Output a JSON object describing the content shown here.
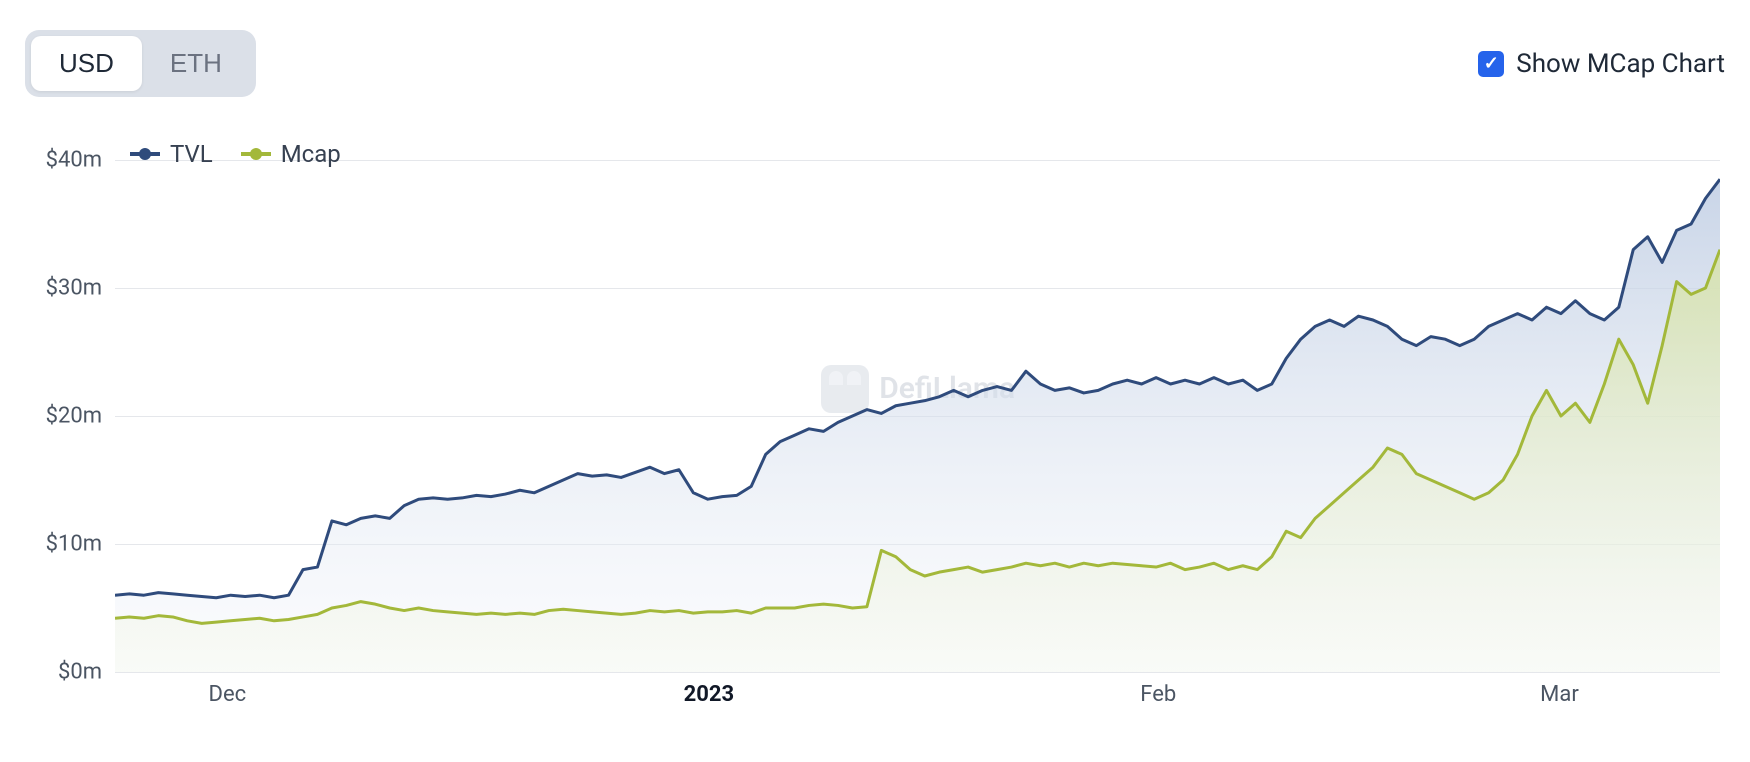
{
  "controls": {
    "toggles": [
      {
        "label": "USD",
        "active": true
      },
      {
        "label": "ETH",
        "active": false
      }
    ],
    "checkbox_label": "Show MCap Chart",
    "checkbox_checked": true
  },
  "legend": {
    "items": [
      {
        "label": "TVL",
        "color": "#2f4b7c"
      },
      {
        "label": "Mcap",
        "color": "#a3b83a"
      }
    ]
  },
  "watermark": {
    "text": "DefiLlama"
  },
  "chart": {
    "type": "area",
    "background_color": "#ffffff",
    "grid_color": "#e5e7eb",
    "label_fontsize": 22,
    "y": {
      "min": 0,
      "max": 40,
      "unit_prefix": "$",
      "unit_suffix": "m",
      "ticks": [
        0,
        10,
        20,
        30,
        40
      ]
    },
    "x": {
      "ticks": [
        {
          "pos": 0.07,
          "label": "Dec",
          "bold": false
        },
        {
          "pos": 0.37,
          "label": "2023",
          "bold": true
        },
        {
          "pos": 0.65,
          "label": "Feb",
          "bold": false
        },
        {
          "pos": 0.9,
          "label": "Mar",
          "bold": false
        }
      ]
    },
    "series": [
      {
        "name": "TVL",
        "stroke": "#2f4b7c",
        "fill_top": "#bfcde3",
        "fill_bottom": "#eef2f8",
        "fill_opacity": 0.85,
        "line_width": 3,
        "values": [
          6.0,
          6.1,
          6.0,
          6.2,
          6.1,
          6.0,
          5.9,
          5.8,
          6.0,
          5.9,
          6.0,
          5.8,
          6.0,
          8.0,
          8.2,
          11.8,
          11.5,
          12.0,
          12.2,
          12.0,
          13.0,
          13.5,
          13.6,
          13.5,
          13.6,
          13.8,
          13.7,
          13.9,
          14.2,
          14.0,
          14.5,
          15.0,
          15.5,
          15.3,
          15.4,
          15.2,
          15.6,
          16.0,
          15.5,
          15.8,
          14.0,
          13.5,
          13.7,
          13.8,
          14.5,
          17.0,
          18.0,
          18.5,
          19.0,
          18.8,
          19.5,
          20.0,
          20.5,
          20.2,
          20.8,
          21.0,
          21.2,
          21.5,
          22.0,
          21.5,
          22.0,
          22.3,
          22.0,
          23.5,
          22.5,
          22.0,
          22.2,
          21.8,
          22.0,
          22.5,
          22.8,
          22.5,
          23.0,
          22.5,
          22.8,
          22.5,
          23.0,
          22.5,
          22.8,
          22.0,
          22.5,
          24.5,
          26.0,
          27.0,
          27.5,
          27.0,
          27.8,
          27.5,
          27.0,
          26.0,
          25.5,
          26.2,
          26.0,
          25.5,
          26.0,
          27.0,
          27.5,
          28.0,
          27.5,
          28.5,
          28.0,
          29.0,
          28.0,
          27.5,
          28.5,
          33.0,
          34.0,
          32.0,
          34.5,
          35.0,
          37.0,
          38.5
        ]
      },
      {
        "name": "Mcap",
        "stroke": "#a3b83a",
        "fill_top": "#d6e2a8",
        "fill_bottom": "#f3f7e6",
        "fill_opacity": 0.85,
        "line_width": 3,
        "values": [
          4.2,
          4.3,
          4.2,
          4.4,
          4.3,
          4.0,
          3.8,
          3.9,
          4.0,
          4.1,
          4.2,
          4.0,
          4.1,
          4.3,
          4.5,
          5.0,
          5.2,
          5.5,
          5.3,
          5.0,
          4.8,
          5.0,
          4.8,
          4.7,
          4.6,
          4.5,
          4.6,
          4.5,
          4.6,
          4.5,
          4.8,
          4.9,
          4.8,
          4.7,
          4.6,
          4.5,
          4.6,
          4.8,
          4.7,
          4.8,
          4.6,
          4.7,
          4.7,
          4.8,
          4.6,
          5.0,
          5.0,
          5.0,
          5.2,
          5.3,
          5.2,
          5.0,
          5.1,
          9.5,
          9.0,
          8.0,
          7.5,
          7.8,
          8.0,
          8.2,
          7.8,
          8.0,
          8.2,
          8.5,
          8.3,
          8.5,
          8.2,
          8.5,
          8.3,
          8.5,
          8.4,
          8.3,
          8.2,
          8.5,
          8.0,
          8.2,
          8.5,
          8.0,
          8.3,
          8.0,
          9.0,
          11.0,
          10.5,
          12.0,
          13.0,
          14.0,
          15.0,
          16.0,
          17.5,
          17.0,
          15.5,
          15.0,
          14.5,
          14.0,
          13.5,
          14.0,
          15.0,
          17.0,
          20.0,
          22.0,
          20.0,
          21.0,
          19.5,
          22.5,
          26.0,
          24.0,
          21.0,
          25.5,
          30.5,
          29.5,
          30.0,
          33.0
        ]
      }
    ]
  }
}
